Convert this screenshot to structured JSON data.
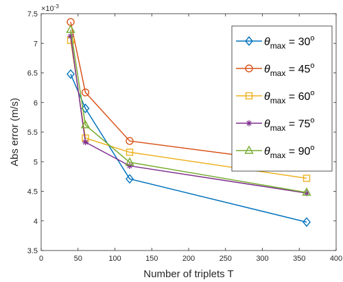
{
  "chart_data": {
    "type": "line",
    "xlabel": "Number of triplets T",
    "ylabel": "Abs error (m/s)",
    "y_exponent_label": "×10",
    "y_exponent_power": "-3",
    "xlim": [
      0,
      400
    ],
    "ylim": [
      3.5,
      7.5
    ],
    "x_ticks": [
      "0",
      "50",
      "100",
      "150",
      "200",
      "250",
      "300",
      "350",
      "400"
    ],
    "y_ticks": [
      "3.5",
      "4",
      "4.5",
      "5",
      "5.5",
      "6",
      "6.5",
      "7",
      "7.5"
    ],
    "grid": false,
    "legend_position": "top-right",
    "x": [
      40,
      60,
      120,
      360
    ],
    "series": [
      {
        "name": "θmax = 30°",
        "legend_sym": "θ",
        "legend_sub": "max",
        "legend_eq": " = 30",
        "legend_sup": "o",
        "color": "#0072BD",
        "marker": "diamond",
        "values": [
          6.48,
          5.9,
          4.71,
          3.98
        ]
      },
      {
        "name": "θmax = 45°",
        "legend_sym": "θ",
        "legend_sub": "max",
        "legend_eq": " = 45",
        "legend_sup": "o",
        "color": "#D95319",
        "marker": "circle",
        "values": [
          7.36,
          6.17,
          5.35,
          4.96
        ]
      },
      {
        "name": "θmax = 60°",
        "legend_sym": "θ",
        "legend_sub": "max",
        "legend_eq": " = 60",
        "legend_sup": "o",
        "color": "#EDB120",
        "marker": "square",
        "values": [
          7.05,
          5.4,
          5.16,
          4.72
        ]
      },
      {
        "name": "θmax = 75°",
        "legend_sym": "θ",
        "legend_sub": "max",
        "legend_eq": " = 75",
        "legend_sup": "o",
        "color": "#7E2F8E",
        "marker": "asterisk",
        "values": [
          7.12,
          5.33,
          4.93,
          4.47
        ]
      },
      {
        "name": "θmax = 90°",
        "legend_sym": "θ",
        "legend_sub": "max",
        "legend_eq": " = 90",
        "legend_sup": "o",
        "color": "#77AC30",
        "marker": "triangle",
        "values": [
          7.23,
          5.62,
          4.99,
          4.48
        ]
      }
    ]
  }
}
